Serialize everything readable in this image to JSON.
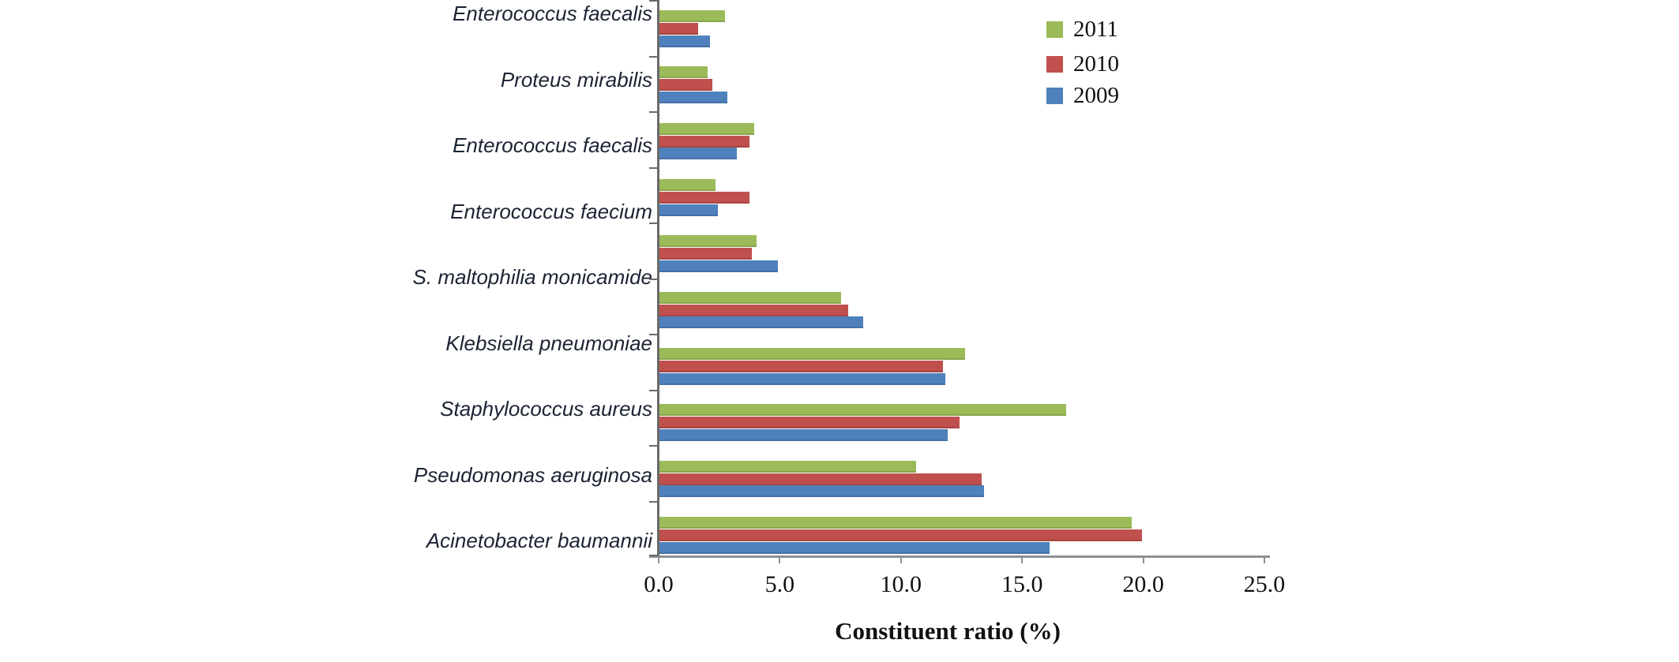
{
  "chart_data": {
    "type": "bar",
    "orientation": "horizontal",
    "title": "",
    "xlabel": "Constituent ratio (%)",
    "ylabel": "",
    "xlim": [
      0,
      25
    ],
    "x_ticks": [
      "0.0",
      "5.0",
      "10.0",
      "15.0",
      "20.0",
      "25.0"
    ],
    "grid": false,
    "legend_position": "top-right",
    "categories": [
      "Enterococcus faecalis",
      "Proteus mirabilis",
      "Enterococcus faecalis",
      "Enterococcus faecium",
      "S. maltophilia monicamide",
      "Klebsiella pneumoniae",
      "Staphylococcus aureus",
      "Pseudomonas aeruginosa",
      "Acinetobacter baumannii"
    ],
    "group_count": 10,
    "series": [
      {
        "name": "2011",
        "color": "#9bbb59",
        "values": [
          2.7,
          2.0,
          3.9,
          2.3,
          4.0,
          7.5,
          12.6,
          16.8,
          10.6,
          19.5
        ]
      },
      {
        "name": "2010",
        "color": "#c0504d",
        "values": [
          1.6,
          2.2,
          3.7,
          3.7,
          3.8,
          7.8,
          11.7,
          12.4,
          13.3,
          19.9
        ]
      },
      {
        "name": "2009",
        "color": "#4f81bd",
        "values": [
          2.1,
          2.8,
          3.2,
          2.4,
          4.9,
          8.4,
          11.8,
          11.9,
          13.4,
          16.1
        ]
      }
    ],
    "layout_note": "10 bar groups drawn against 9 evenly spaced category labels, as in source image"
  },
  "colors": {
    "axis": "#8f8f8f",
    "label_text": "#1b2333",
    "tick_text": "#111111"
  }
}
